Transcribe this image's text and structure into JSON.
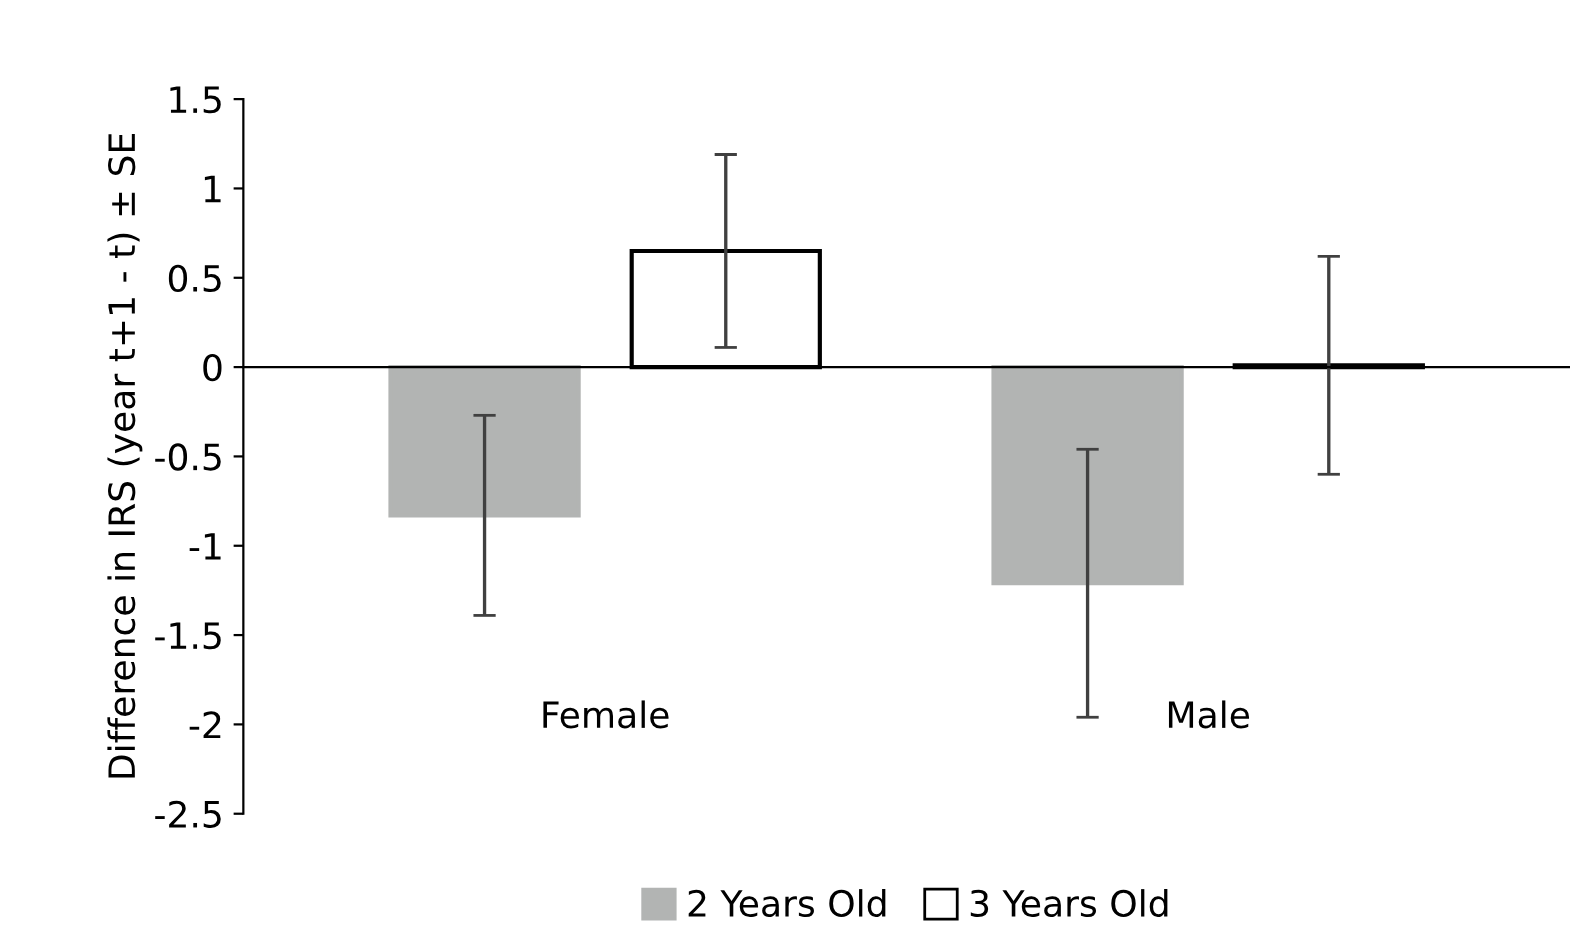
{
  "chart_data": {
    "type": "bar",
    "ylabel": "Difference in IRS (year t+1 - t) ± SE",
    "categories": [
      "Female",
      "Male"
    ],
    "series": [
      {
        "name": "2 Years Old",
        "color": "#b2b4b3",
        "values": [
          -0.83,
          -1.21
        ],
        "errors": [
          0.56,
          0.75
        ]
      },
      {
        "name": "3 Years Old",
        "color": "#ffffff",
        "values": [
          0.65,
          0.01
        ],
        "errors": [
          0.54,
          0.61
        ]
      }
    ],
    "ylim": [
      -2.5,
      1.5
    ],
    "yticks": [
      1.5,
      1,
      0.5,
      0,
      -0.5,
      -1,
      -1.5,
      -2,
      -2.5
    ],
    "legend": "bottom"
  }
}
